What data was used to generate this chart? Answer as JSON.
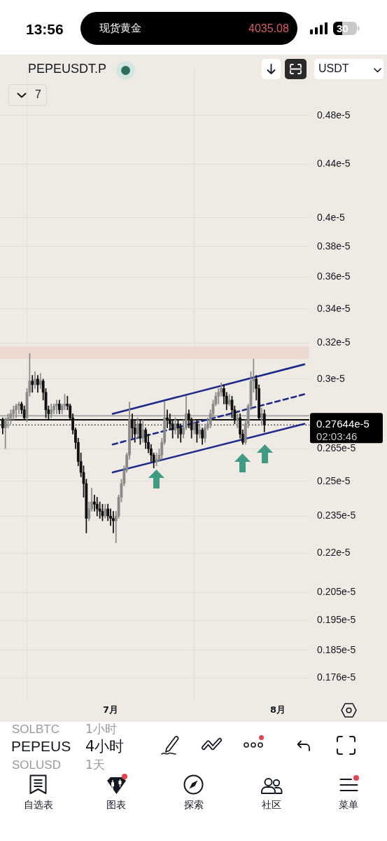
{
  "chart_data": {
    "type": "candlestick",
    "title": "PEPEUSDT.P",
    "log": true,
    "grid": true,
    "x": [
      "--06-11T00:00",
      "--06-11T12:00",
      "--06-12T00:00",
      "--06-12T12:00",
      "--06-13T00:00",
      "--06-13T12:00",
      "--06-14T00:00",
      "--06-14T12:00",
      "--06-15T00:00",
      "--06-15T12:00",
      "--06-16T00:00",
      "--06-16T12:00",
      "--06-17T00:00",
      "--06-17T12:00",
      "--06-18T00:00",
      "--06-18T12:00",
      "--06-19T00:00",
      "--06-19T12:00",
      "--06-20T00:00",
      "--06-20T12:00",
      "--06-21T00:00",
      "--06-21T12:00",
      "--06-22T00:00",
      "--06-22T12:00",
      "--06-23T00:00",
      "--06-23T12:00",
      "--06-24T00:00",
      "--06-24T12:00",
      "--06-25T00:00",
      "--06-25T12:00",
      "--06-26T00:00",
      "--06-26T12:00",
      "--06-27T00:00",
      "--06-27T12:00",
      "--06-28T00:00",
      "--06-28T12:00",
      "--06-29T00:00",
      "--06-29T12:00",
      "--06-30T00:00",
      "--06-30T12:00",
      "--07-01T00:00",
      "--07-01T12:00",
      "--07-02T00:00",
      "--07-02T12:00",
      "--07-03T00:00",
      "--07-03T12:00",
      "--07-04T00:00",
      "--07-04T12:00",
      "--07-05T00:00",
      "--07-05T12:00",
      "--07-06T00:00",
      "--07-06T12:00",
      "--07-07T00:00",
      "--07-07T12:00",
      "--07-08T00:00",
      "--07-08T12:00",
      "--07-09T00:00",
      "--07-09T12:00",
      "--07-10T00:00",
      "--07-10T12:00",
      "--07-11T00:00",
      "--07-11T12:00",
      "--07-12T00:00",
      "--07-12T12:00",
      "--07-13T00:00",
      "--07-13T12:00",
      "--07-14T00:00",
      "--07-14T12:00",
      "--07-15T00:00",
      "--07-15T12:00",
      "--07-16T00:00",
      "--07-16T12:00",
      "--07-17T00:00",
      "--07-17T12:00",
      "--07-18T00:00",
      "--07-18T12:00",
      "--07-19T00:00",
      "--07-19T12:00",
      "--07-20T00:00",
      "--07-20T12:00",
      "--07-21T00:00",
      "--07-21T12:00",
      "--07-22T00:00",
      "--07-22T12:00",
      "--07-23T00:00",
      "--07-23T12:00",
      "--07-24T00:00",
      "--07-24T12:00",
      "--07-25T00:00",
      "--07-25T12:00",
      "--07-26T00:00",
      "--07-26T12:00",
      "--07-27T00:00",
      "--07-27T12:00",
      "--07-28T00:00",
      "--07-28T12:00",
      "--07-29T00:00",
      "--07-29T12:00"
    ],
    "ohlc": [
      [
        2.79e-06,
        2.8e-06,
        2.72e-06,
        2.75e-06
      ],
      [
        2.75e-06,
        2.8e-06,
        2.65e-06,
        2.79e-06
      ],
      [
        2.79e-06,
        2.82e-06,
        2.75e-06,
        2.8e-06
      ],
      [
        2.8e-06,
        2.84e-06,
        2.77e-06,
        2.82e-06
      ],
      [
        2.82e-06,
        2.86e-06,
        2.79e-06,
        2.84e-06
      ],
      [
        2.84e-06,
        2.87e-06,
        2.8e-06,
        2.86e-06
      ],
      [
        2.86e-06,
        2.88e-06,
        2.82e-06,
        2.87e-06
      ],
      [
        2.87e-06,
        2.88e-06,
        2.82e-06,
        2.84e-06
      ],
      [
        2.84e-06,
        2.86e-06,
        2.79e-06,
        2.8e-06
      ],
      [
        2.8e-06,
        2.95e-06,
        2.78e-06,
        2.93e-06
      ],
      [
        2.93e-06,
        3.14e-06,
        2.91e-06,
        2.99e-06
      ],
      [
        2.99e-06,
        3.02e-06,
        2.93e-06,
        2.97e-06
      ],
      [
        2.97e-06,
        3.04e-06,
        2.95e-06,
        3e-06
      ],
      [
        3e-06,
        3.02e-06,
        2.93e-06,
        2.97e-06
      ],
      [
        2.97e-06,
        3.03e-06,
        2.95e-06,
        2.99e-06
      ],
      [
        2.99e-06,
        3e-06,
        2.89e-06,
        2.93e-06
      ],
      [
        2.93e-06,
        2.95e-06,
        2.8e-06,
        2.84e-06
      ],
      [
        2.84e-06,
        2.86e-06,
        2.79e-06,
        2.82e-06
      ],
      [
        2.82e-06,
        2.87e-06,
        2.8e-06,
        2.84e-06
      ],
      [
        2.84e-06,
        2.87e-06,
        2.82e-06,
        2.86e-06
      ],
      [
        2.86e-06,
        2.89e-06,
        2.82e-06,
        2.87e-06
      ],
      [
        2.87e-06,
        2.89e-06,
        2.82e-06,
        2.84e-06
      ],
      [
        2.84e-06,
        2.87e-06,
        2.82e-06,
        2.86e-06
      ],
      [
        2.86e-06,
        2.92e-06,
        2.84e-06,
        2.87e-06
      ],
      [
        2.87e-06,
        2.91e-06,
        2.84e-06,
        2.86e-06
      ],
      [
        2.86e-06,
        2.87e-06,
        2.79e-06,
        2.8e-06
      ],
      [
        2.8e-06,
        2.82e-06,
        2.72e-06,
        2.74e-06
      ],
      [
        2.74e-06,
        2.75e-06,
        2.65e-06,
        2.68e-06
      ],
      [
        2.68e-06,
        2.7e-06,
        2.57e-06,
        2.59e-06
      ],
      [
        2.59e-06,
        2.63e-06,
        2.52e-06,
        2.54e-06
      ],
      [
        2.54e-06,
        2.57e-06,
        2.43e-06,
        2.49e-06
      ],
      [
        2.49e-06,
        2.51e-06,
        2.28e-06,
        2.34e-06
      ],
      [
        2.34e-06,
        2.41e-06,
        2.33e-06,
        2.38e-06
      ],
      [
        2.38e-06,
        2.47e-06,
        2.37e-06,
        2.41e-06
      ],
      [
        2.41e-06,
        2.44e-06,
        2.37e-06,
        2.4e-06
      ],
      [
        2.4e-06,
        2.43e-06,
        2.35e-06,
        2.38e-06
      ],
      [
        2.38e-06,
        2.41e-06,
        2.34e-06,
        2.37e-06
      ],
      [
        2.37e-06,
        2.4e-06,
        2.33e-06,
        2.35e-06
      ],
      [
        2.35e-06,
        2.4e-06,
        2.34e-06,
        2.38e-06
      ],
      [
        2.38e-06,
        2.4e-06,
        2.33e-06,
        2.35e-06
      ],
      [
        2.35e-06,
        2.38e-06,
        2.31e-06,
        2.34e-06
      ],
      [
        2.34e-06,
        2.37e-06,
        2.28e-06,
        2.33e-06
      ],
      [
        2.33e-06,
        2.37e-06,
        2.24e-06,
        2.35e-06
      ],
      [
        2.35e-06,
        2.44e-06,
        2.34e-06,
        2.43e-06
      ],
      [
        2.43e-06,
        2.51e-06,
        2.41e-06,
        2.49e-06
      ],
      [
        2.49e-06,
        2.57e-06,
        2.48e-06,
        2.55e-06
      ],
      [
        2.55e-06,
        2.63e-06,
        2.54e-06,
        2.62e-06
      ],
      [
        2.62e-06,
        2.88e-06,
        2.6e-06,
        2.79e-06
      ],
      [
        2.79e-06,
        2.82e-06,
        2.7e-06,
        2.75e-06
      ],
      [
        2.75e-06,
        2.79e-06,
        2.68e-06,
        2.72e-06
      ],
      [
        2.72e-06,
        2.8e-06,
        2.7e-06,
        2.77e-06
      ],
      [
        2.77e-06,
        2.79e-06,
        2.67e-06,
        2.7e-06
      ],
      [
        2.7e-06,
        2.79e-06,
        2.68e-06,
        2.74e-06
      ],
      [
        2.74e-06,
        2.75e-06,
        2.65e-06,
        2.68e-06
      ],
      [
        2.68e-06,
        2.72e-06,
        2.63e-06,
        2.65e-06
      ],
      [
        2.65e-06,
        2.67e-06,
        2.59e-06,
        2.62e-06
      ],
      [
        2.62e-06,
        2.63e-06,
        2.56e-06,
        2.59e-06
      ],
      [
        2.59e-06,
        2.63e-06,
        2.57e-06,
        2.6e-06
      ],
      [
        2.6e-06,
        2.65e-06,
        2.59e-06,
        2.62e-06
      ],
      [
        2.62e-06,
        2.7e-06,
        2.6e-06,
        2.68e-06
      ],
      [
        2.68e-06,
        2.88e-06,
        2.67e-06,
        2.8e-06
      ],
      [
        2.8e-06,
        2.84e-06,
        2.75e-06,
        2.79e-06
      ],
      [
        2.79e-06,
        2.82e-06,
        2.74e-06,
        2.77e-06
      ],
      [
        2.77e-06,
        2.79e-06,
        2.7e-06,
        2.74e-06
      ],
      [
        2.74e-06,
        2.8e-06,
        2.72e-06,
        2.77e-06
      ],
      [
        2.77e-06,
        2.79e-06,
        2.7e-06,
        2.75e-06
      ],
      [
        2.75e-06,
        2.77e-06,
        2.68e-06,
        2.72e-06
      ],
      [
        2.72e-06,
        2.79e-06,
        2.7e-06,
        2.75e-06
      ],
      [
        2.75e-06,
        2.91e-06,
        2.74e-06,
        2.82e-06
      ],
      [
        2.82e-06,
        2.84e-06,
        2.75e-06,
        2.79e-06
      ],
      [
        2.79e-06,
        2.8e-06,
        2.7e-06,
        2.74e-06
      ],
      [
        2.74e-06,
        2.79e-06,
        2.72e-06,
        2.77e-06
      ],
      [
        2.77e-06,
        2.79e-06,
        2.68e-06,
        2.72e-06
      ],
      [
        2.72e-06,
        2.77e-06,
        2.7e-06,
        2.74e-06
      ],
      [
        2.74e-06,
        2.75e-06,
        2.67e-06,
        2.7e-06
      ],
      [
        2.7e-06,
        2.77e-06,
        2.68e-06,
        2.75e-06
      ],
      [
        2.75e-06,
        2.8e-06,
        2.74e-06,
        2.77e-06
      ],
      [
        2.77e-06,
        2.84e-06,
        2.75e-06,
        2.82e-06
      ],
      [
        2.82e-06,
        2.89e-06,
        2.8e-06,
        2.87e-06
      ],
      [
        2.87e-06,
        2.93e-06,
        2.86e-06,
        2.91e-06
      ],
      [
        2.91e-06,
        2.95e-06,
        2.87e-06,
        2.93e-06
      ],
      [
        2.93e-06,
        2.98e-06,
        2.91e-06,
        2.95e-06
      ],
      [
        2.95e-06,
        2.97e-06,
        2.87e-06,
        2.91e-06
      ],
      [
        2.91e-06,
        2.93e-06,
        2.84e-06,
        2.87e-06
      ],
      [
        2.87e-06,
        2.92e-06,
        2.86e-06,
        2.89e-06
      ],
      [
        2.89e-06,
        2.91e-06,
        2.8e-06,
        2.84e-06
      ],
      [
        2.84e-06,
        2.86e-06,
        2.77e-06,
        2.79e-06
      ],
      [
        2.79e-06,
        2.82e-06,
        2.75e-06,
        2.8e-06
      ],
      [
        2.8e-06,
        2.82e-06,
        2.7e-06,
        2.72e-06
      ],
      [
        2.72e-06,
        2.74e-06,
        2.67e-06,
        2.68e-06
      ],
      [
        2.68e-06,
        2.79e-06,
        2.67e-06,
        2.77e-06
      ],
      [
        2.77e-06,
        2.87e-06,
        2.75e-06,
        2.86e-06
      ],
      [
        2.86e-06,
        3.04e-06,
        2.84e-06,
        2.99e-06
      ],
      [
        2.99e-06,
        3.11e-06,
        2.93e-06,
        3e-06
      ],
      [
        3e-06,
        3.02e-06,
        2.89e-06,
        2.95e-06
      ],
      [
        2.95e-06,
        2.97e-06,
        2.79e-06,
        2.8e-06
      ],
      [
        2.8e-06,
        2.85e-06,
        2.77e-06,
        2.82e-06
      ],
      [
        2.82e-06,
        2.84e-06,
        2.73e-06,
        2.7644e-06
      ]
    ],
    "colors": [
      "#111111",
      "#8a8a8a",
      "#8a8a8a",
      "#8a8a8a",
      "#8a8a8a",
      "#8a8a8a",
      "#8a8a8a",
      "#111111",
      "#111111",
      "#8a8a8a",
      "#8a8a8a",
      "#111111",
      "#8a8a8a",
      "#111111",
      "#8a8a8a",
      "#111111",
      "#111111",
      "#111111",
      "#8a8a8a",
      "#8a8a8a",
      "#8a8a8a",
      "#111111",
      "#8a8a8a",
      "#8a8a8a",
      "#111111",
      "#111111",
      "#111111",
      "#111111",
      "#111111",
      "#111111",
      "#111111",
      "#111111",
      "#8a8a8a",
      "#8a8a8a",
      "#111111",
      "#111111",
      "#111111",
      "#111111",
      "#8a8a8a",
      "#111111",
      "#111111",
      "#111111",
      "#8a8a8a",
      "#8a8a8a",
      "#8a8a8a",
      "#8a8a8a",
      "#8a8a8a",
      "#8a8a8a",
      "#111111",
      "#111111",
      "#8a8a8a",
      "#111111",
      "#8a8a8a",
      "#111111",
      "#111111",
      "#111111",
      "#111111",
      "#8a8a8a",
      "#8a8a8a",
      "#8a8a8a",
      "#8a8a8a",
      "#111111",
      "#111111",
      "#111111",
      "#8a8a8a",
      "#111111",
      "#111111",
      "#8a8a8a",
      "#8a8a8a",
      "#111111",
      "#111111",
      "#8a8a8a",
      "#111111",
      "#8a8a8a",
      "#111111",
      "#8a8a8a",
      "#8a8a8a",
      "#8a8a8a",
      "#8a8a8a",
      "#8a8a8a",
      "#8a8a8a",
      "#8a8a8a",
      "#111111",
      "#111111",
      "#8a8a8a",
      "#111111",
      "#111111",
      "#8a8a8a",
      "#111111",
      "#111111",
      "#8a8a8a",
      "#8a8a8a",
      "#8a8a8a",
      "#8a8a8a",
      "#111111",
      "#111111",
      "#8a8a8a",
      "#111111"
    ],
    "series": [
      {
        "type": "line",
        "color": "#1c2b8c",
        "x": [
          "--07-01T09:00",
          "--08-05T22:00"
        ],
        "values": [
          2.82e-06,
          3.08e-06
        ]
      },
      {
        "type": "line",
        "color": "#1c2b8c",
        "line_style": "dashed",
        "x": [
          "--07-01T09:00",
          "--08-05T22:00"
        ],
        "values": [
          2.67e-06,
          2.92e-06
        ]
      },
      {
        "type": "line",
        "color": "#1c2b8c",
        "x": [
          "--07-01T09:00",
          "--08-05T22:00"
        ],
        "values": [
          2.54e-06,
          2.77e-06
        ]
      }
    ],
    "xlim": [
      "--06-10T12:00",
      "--08-06T20:00"
    ],
    "xticks": [
      {
        "value": "--07-01",
        "label": "7月"
      },
      {
        "value": "--08-01",
        "label": "8月"
      }
    ],
    "ylim": [
      1.69e-06,
      5.21e-06
    ],
    "yticks": [
      {
        "value": 1.76e-06,
        "label": "0.176e-5"
      },
      {
        "value": 1.85e-06,
        "label": "0.185e-5"
      },
      {
        "value": 1.95e-06,
        "label": "0.195e-5"
      },
      {
        "value": 2.05e-06,
        "label": "0.205e-5"
      },
      {
        "value": 2.2e-06,
        "label": "0.22e-5"
      },
      {
        "value": 2.35e-06,
        "label": "0.235e-5"
      },
      {
        "value": 2.5e-06,
        "label": "0.25e-5"
      },
      {
        "value": 2.65e-06,
        "label": "0.265e-5"
      },
      {
        "value": 3e-06,
        "label": "0.3e-5"
      },
      {
        "value": 3.2e-06,
        "label": "0.32e-5"
      },
      {
        "value": 3.4e-06,
        "label": "0.34e-5"
      },
      {
        "value": 3.6e-06,
        "label": "0.36e-5"
      },
      {
        "value": 3.8e-06,
        "label": "0.38e-5"
      },
      {
        "value": 4e-06,
        "label": "0.4e-5"
      },
      {
        "value": 4.4e-06,
        "label": "0.44e-5"
      },
      {
        "value": 4.8e-06,
        "label": "0.48e-5"
      }
    ],
    "bands": [
      {
        "axis": "y",
        "from": 3.11e-06,
        "to": 3.18e-06,
        "color": "#ecd9cf"
      }
    ],
    "ref_lines": [
      {
        "axis": "y",
        "value": 2.81e-06,
        "color": "#a9a9a9"
      },
      {
        "axis": "y",
        "value": 2.79e-06,
        "color": "#111111"
      },
      {
        "axis": "y",
        "value": 2.7644e-06,
        "label": "0.27644e-5",
        "color": "#111111",
        "line_style": "dotted"
      }
    ],
    "annotations": [
      "13:56",
      "现货黄金",
      "4035.08",
      "30",
      "USDT",
      "7",
      "02:03:46",
      "SOLBTC",
      "1小时",
      "PEPEUS",
      "4小时",
      "SOLUSD",
      "1天",
      "自选表",
      "图表",
      "探索",
      "社区",
      "菜单"
    ]
  }
}
